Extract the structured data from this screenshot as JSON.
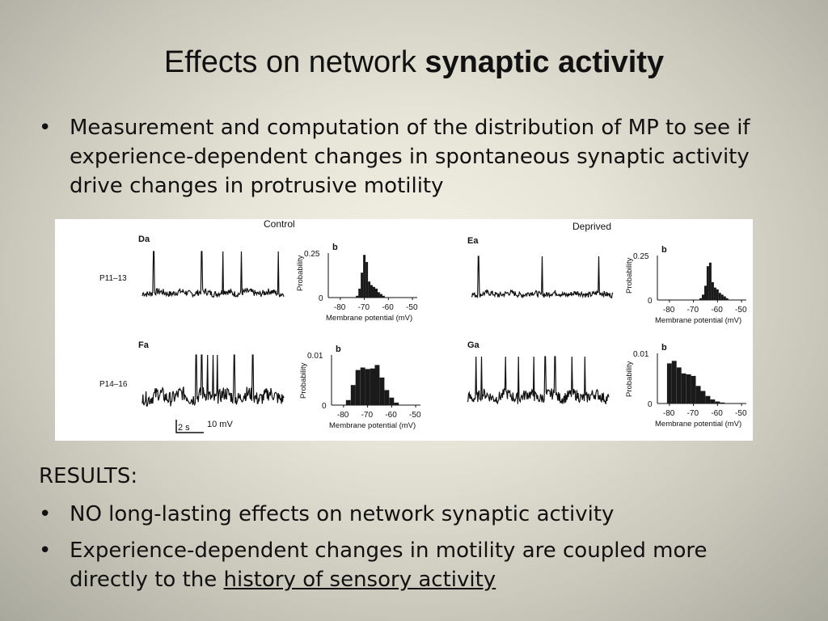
{
  "slide": {
    "title_prefix": "Effects on network ",
    "title_bold": "synaptic activity",
    "intro_bullet": "Measurement and computation of the distribution of MP to see if experience-dependent changes in spontaneous synaptic activity drive changes in protrusive motility",
    "results_label": "RESULTS:",
    "result_bullets": [
      "NO long-lasting effects on network synaptic activity",
      "Experience-dependent changes in motility are coupled more directly to the "
    ],
    "result_underlined": "history of sensory activity",
    "bullet_char": "•"
  },
  "figure": {
    "control_label": "Control",
    "deprived_label": "Deprived",
    "row_labels": [
      "P11–13",
      "P14–16"
    ],
    "scale_time": "2 s",
    "scale_voltage": "10 mV",
    "panels": [
      {
        "trace_label": "Da",
        "hist_label": "b",
        "ymax_label": "0.25",
        "ylabel": "Probability",
        "xlabel": "Membrane potential (mV)",
        "xticks": [
          "-80",
          "-70",
          "-60",
          "-50"
        ],
        "y0": "0"
      },
      {
        "trace_label": "Ea",
        "hist_label": "b",
        "ymax_label": "0.25",
        "ylabel": "Probability",
        "xlabel": "Membrane potential (mV)",
        "xticks": [
          "-80",
          "-70",
          "-60",
          "-50"
        ],
        "y0": "0"
      },
      {
        "trace_label": "Fa",
        "hist_label": "b",
        "ymax_label": "0.01",
        "ylabel": "Probability",
        "xlabel": "Membrane potential (mV)",
        "xticks": [
          "-80",
          "-70",
          "-60",
          "-50"
        ],
        "y0": "0"
      },
      {
        "trace_label": "Ga",
        "hist_label": "b",
        "ymax_label": "0.01",
        "ylabel": "Probability",
        "xlabel": "Membrane potential (mV)",
        "xticks": [
          "-80",
          "-70",
          "-60",
          "-50"
        ],
        "y0": "0"
      }
    ]
  },
  "chart_data": [
    {
      "type": "bar",
      "panel": "Db",
      "xlabel": "Membrane potential (mV)",
      "ylabel": "Probability",
      "xlim": [
        -85,
        -48
      ],
      "ylim": [
        0,
        0.25
      ],
      "x": [
        -73,
        -72,
        -71,
        -70,
        -69,
        -68,
        -67,
        -66,
        -65,
        -64,
        -63,
        -62
      ],
      "values": [
        0.01,
        0.05,
        0.14,
        0.24,
        0.2,
        0.09,
        0.07,
        0.06,
        0.05,
        0.03,
        0.02,
        0.01
      ]
    },
    {
      "type": "bar",
      "panel": "Eb",
      "xlabel": "Membrane potential (mV)",
      "ylabel": "Probability",
      "xlim": [
        -85,
        -48
      ],
      "ylim": [
        0,
        0.25
      ],
      "x": [
        -67,
        -66,
        -65,
        -64,
        -63,
        -62,
        -61,
        -60,
        -59,
        -58,
        -57,
        -56
      ],
      "values": [
        0.01,
        0.03,
        0.08,
        0.19,
        0.21,
        0.1,
        0.07,
        0.06,
        0.04,
        0.03,
        0.02,
        0.01
      ]
    },
    {
      "type": "bar",
      "panel": "Fb",
      "xlabel": "Membrane potential (mV)",
      "ylabel": "Probability",
      "xlim": [
        -85,
        -48
      ],
      "ylim": [
        0,
        0.01
      ],
      "x": [
        -78,
        -76,
        -74,
        -72,
        -70,
        -68,
        -66,
        -64,
        -62,
        -60,
        -58
      ],
      "values": [
        0.001,
        0.004,
        0.007,
        0.0075,
        0.0072,
        0.0073,
        0.008,
        0.0055,
        0.003,
        0.0015,
        0.0005
      ]
    },
    {
      "type": "bar",
      "panel": "Gb",
      "xlabel": "Membrane potential (mV)",
      "ylabel": "Probability",
      "xlim": [
        -85,
        -48
      ],
      "ylim": [
        0,
        0.01
      ],
      "x": [
        -80,
        -78,
        -76,
        -74,
        -72,
        -70,
        -68,
        -66,
        -64,
        -62,
        -60,
        -58
      ],
      "values": [
        0.008,
        0.0085,
        0.0072,
        0.006,
        0.0058,
        0.0055,
        0.0035,
        0.0025,
        0.0015,
        0.0008,
        0.0004,
        0.0002
      ]
    }
  ]
}
